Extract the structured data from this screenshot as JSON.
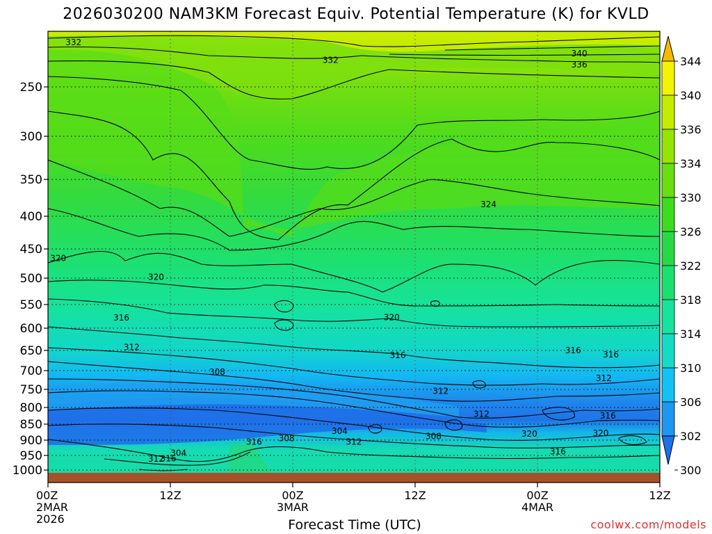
{
  "title": "2026030200 NAM3KM Forecast Equiv. Potential Temperature (K) for KVLD",
  "xlabel": "Forecast Time (UTC)",
  "watermark": "coolwx.com/models",
  "chart_data": {
    "type": "heatmap",
    "title": "2026030200 NAM3KM Forecast Equiv. Potential Temperature (K) for KVLD",
    "xlabel": "Forecast Time (UTC)",
    "ylabel": "",
    "x_axis": {
      "unit": "hours from 2026-03-02 00Z",
      "range": [
        0,
        60
      ],
      "ticks": [
        {
          "value": 0,
          "lines": [
            "00Z",
            "2MAR",
            "2026"
          ]
        },
        {
          "value": 12,
          "lines": [
            "12Z"
          ]
        },
        {
          "value": 24,
          "lines": [
            "00Z",
            "3MAR"
          ]
        },
        {
          "value": 36,
          "lines": [
            "12Z"
          ]
        },
        {
          "value": 48,
          "lines": [
            "00Z",
            "4MAR"
          ]
        },
        {
          "value": 60,
          "lines": [
            "12Z"
          ]
        }
      ]
    },
    "y_axis": {
      "unit": "hPa",
      "ticks": [
        250,
        300,
        350,
        400,
        450,
        500,
        550,
        600,
        650,
        700,
        750,
        800,
        850,
        900,
        950,
        1000
      ],
      "dotted_grid": true
    },
    "colorbar": {
      "levels": [
        300,
        302,
        306,
        310,
        314,
        318,
        322,
        326,
        330,
        334,
        336,
        340,
        344
      ],
      "bands": [
        {
          "from": 298,
          "to": 302,
          "color": "#1f70e8"
        },
        {
          "from": 302,
          "to": 306,
          "color": "#1f96f0"
        },
        {
          "from": 306,
          "to": 310,
          "color": "#12c2f4"
        },
        {
          "from": 310,
          "to": 314,
          "color": "#14dcc4"
        },
        {
          "from": 314,
          "to": 318,
          "color": "#17e39c"
        },
        {
          "from": 318,
          "to": 322,
          "color": "#1be070"
        },
        {
          "from": 322,
          "to": 326,
          "color": "#27da45"
        },
        {
          "from": 326,
          "to": 330,
          "color": "#3edc1e"
        },
        {
          "from": 330,
          "to": 334,
          "color": "#6ade10"
        },
        {
          "from": 334,
          "to": 336,
          "color": "#94e404"
        },
        {
          "from": 336,
          "to": 340,
          "color": "#c5ec00"
        },
        {
          "from": 340,
          "to": 344,
          "color": "#f3f306"
        },
        {
          "from": 344,
          "to": 346,
          "color": "#f5ba00"
        }
      ]
    },
    "contour_labels": [
      {
        "text": "332",
        "t": 2.5,
        "p": 210
      },
      {
        "text": "332",
        "t": 27.7,
        "p": 226
      },
      {
        "text": "340",
        "t": 52.1,
        "p": 220
      },
      {
        "text": "336",
        "t": 52.1,
        "p": 230
      },
      {
        "text": "324",
        "t": 43.2,
        "p": 384
      },
      {
        "text": "320",
        "t": 1.0,
        "p": 466
      },
      {
        "text": "320",
        "t": 10.6,
        "p": 498
      },
      {
        "text": "320",
        "t": 33.7,
        "p": 577
      },
      {
        "text": "316",
        "t": 7.2,
        "p": 578
      },
      {
        "text": "316",
        "t": 34.3,
        "p": 662
      },
      {
        "text": "316",
        "t": 51.5,
        "p": 650
      },
      {
        "text": "316",
        "t": 55.2,
        "p": 660
      },
      {
        "text": "316",
        "t": 54.9,
        "p": 825
      },
      {
        "text": "316",
        "t": 20.2,
        "p": 906
      },
      {
        "text": "316",
        "t": 50.0,
        "p": 937
      },
      {
        "text": "316",
        "t": 11.8,
        "p": 961
      },
      {
        "text": "312",
        "t": 8.2,
        "p": 643
      },
      {
        "text": "312",
        "t": 54.5,
        "p": 720
      },
      {
        "text": "312",
        "t": 38.5,
        "p": 755
      },
      {
        "text": "312",
        "t": 42.5,
        "p": 820
      },
      {
        "text": "312",
        "t": 30.0,
        "p": 906
      },
      {
        "text": "312",
        "t": 10.6,
        "p": 962
      },
      {
        "text": "308",
        "t": 16.6,
        "p": 704
      },
      {
        "text": "308",
        "t": 23.4,
        "p": 895
      },
      {
        "text": "308",
        "t": 37.8,
        "p": 888
      },
      {
        "text": "304",
        "t": 28.6,
        "p": 872
      },
      {
        "text": "304",
        "t": 12.8,
        "p": 942
      },
      {
        "text": "320",
        "t": 47.2,
        "p": 880
      },
      {
        "text": "320",
        "t": 54.2,
        "p": 878
      }
    ]
  }
}
